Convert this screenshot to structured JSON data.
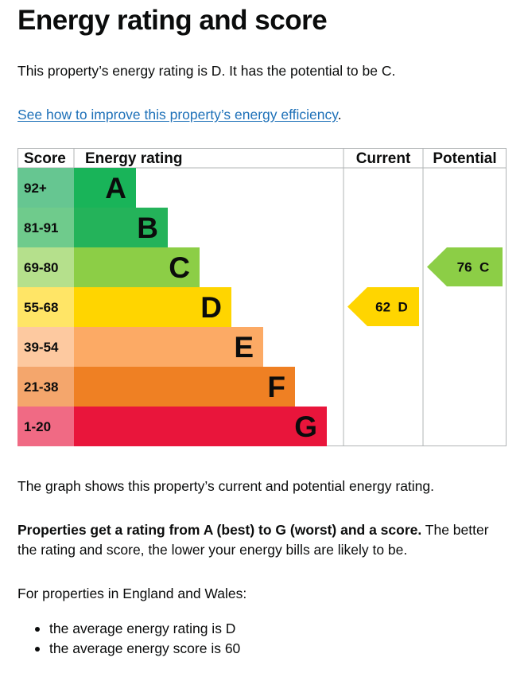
{
  "page": {
    "title": "Energy rating and score",
    "lead": "This property’s energy rating is D. It has the potential to be C.",
    "link_text": "See how to improve this property’s energy efficiency",
    "link_suffix": ".",
    "graph_note": "The graph shows this property’s current and potential energy rating.",
    "props_bold": "Properties get a rating from A (best) to G (worst) and a score.",
    "props_rest": " The better the rating and score, the lower your energy bills are likely to be.",
    "england_wales": "For properties in England and Wales:",
    "bullets": [
      "the average energy rating is D",
      "the average energy score is 60"
    ]
  },
  "chart_data": {
    "type": "bar",
    "headers": {
      "score": "Score",
      "rating": "Energy rating",
      "current": "Current",
      "potential": "Potential"
    },
    "bands": [
      {
        "range": "92+",
        "letter": "A",
        "color": "#19b459",
        "score_bg": "#66c691"
      },
      {
        "range": "81-91",
        "letter": "B",
        "color": "#24b35a",
        "score_bg": "#6fcb8c"
      },
      {
        "range": "69-80",
        "letter": "C",
        "color": "#8cce46",
        "score_bg": "#b5e08c"
      },
      {
        "range": "55-68",
        "letter": "D",
        "color": "#ffd500",
        "score_bg": "#ffe566"
      },
      {
        "range": "39-54",
        "letter": "E",
        "color": "#fcaa65",
        "score_bg": "#fdc9a0"
      },
      {
        "range": "21-38",
        "letter": "F",
        "color": "#ef8023",
        "score_bg": "#f4a66c"
      },
      {
        "range": "1-20",
        "letter": "G",
        "color": "#e9153b",
        "score_bg": "#f06a84"
      }
    ],
    "current": {
      "score": 62,
      "letter": "D",
      "color": "#ffd500"
    },
    "potential": {
      "score": 76,
      "letter": "C",
      "color": "#8cce46"
    },
    "grid_color": "#b1b4b6"
  }
}
